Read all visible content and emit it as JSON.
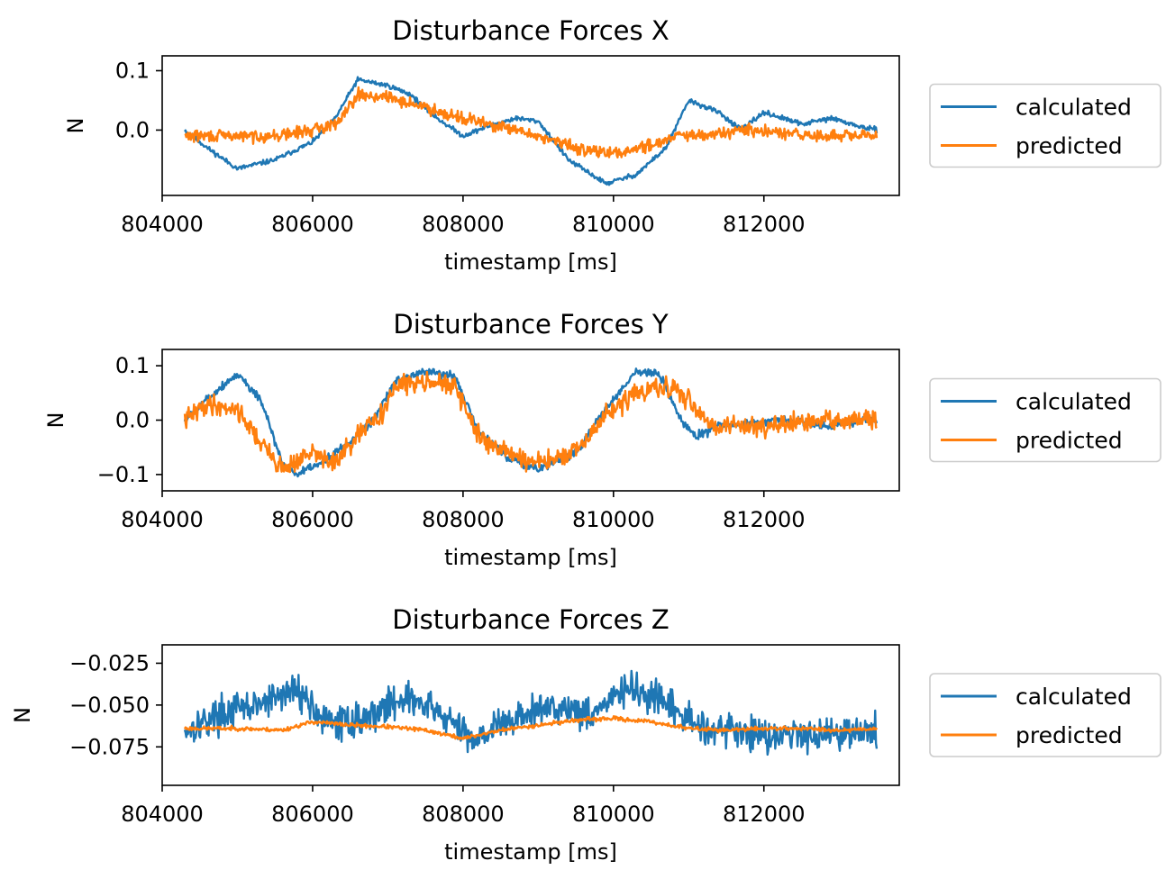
{
  "colors": {
    "calculated": "#1f77b4",
    "predicted": "#ff7f0e",
    "axes": "#000000",
    "legend_border": "#cccccc"
  },
  "chart_data": [
    {
      "type": "line",
      "title": "Disturbance Forces X",
      "xlabel": "timestamp [ms]",
      "ylabel": "N",
      "xlim": [
        804000,
        813800
      ],
      "ylim": [
        -0.11,
        0.125
      ],
      "x_ticks": [
        804000,
        806000,
        808000,
        810000,
        812000
      ],
      "x_tick_labels": [
        "804000",
        "806000",
        "808000",
        "810000",
        "812000"
      ],
      "y_ticks": [
        0.0,
        0.1
      ],
      "y_tick_labels": [
        "0.0",
        "0.1"
      ],
      "grid": false,
      "legend_position": "right",
      "series": [
        {
          "name": "calculated",
          "color_key": "calculated",
          "noise": 0.004,
          "seed": 11,
          "points": [
            [
              804300,
              0.0
            ],
            [
              804600,
              -0.03
            ],
            [
              805000,
              -0.065
            ],
            [
              805500,
              -0.05
            ],
            [
              806000,
              -0.02
            ],
            [
              806300,
              0.02
            ],
            [
              806600,
              0.085
            ],
            [
              807000,
              0.075
            ],
            [
              807300,
              0.06
            ],
            [
              807600,
              0.025
            ],
            [
              808000,
              -0.01
            ],
            [
              808300,
              0.005
            ],
            [
              808700,
              0.02
            ],
            [
              809000,
              0.015
            ],
            [
              809400,
              -0.05
            ],
            [
              809900,
              -0.09
            ],
            [
              810300,
              -0.075
            ],
            [
              810700,
              -0.03
            ],
            [
              811000,
              0.05
            ],
            [
              811400,
              0.03
            ],
            [
              811700,
              0.0
            ],
            [
              812000,
              0.03
            ],
            [
              812500,
              0.01
            ],
            [
              812900,
              0.02
            ],
            [
              813300,
              0.005
            ],
            [
              813500,
              0.0
            ]
          ]
        },
        {
          "name": "predicted",
          "color_key": "predicted",
          "noise": 0.01,
          "seed": 29,
          "points": [
            [
              804300,
              -0.01
            ],
            [
              805000,
              -0.01
            ],
            [
              805500,
              -0.01
            ],
            [
              806000,
              0.0
            ],
            [
              806300,
              0.01
            ],
            [
              806600,
              0.06
            ],
            [
              807000,
              0.055
            ],
            [
              807300,
              0.045
            ],
            [
              807600,
              0.035
            ],
            [
              808000,
              0.02
            ],
            [
              808500,
              0.005
            ],
            [
              809000,
              -0.01
            ],
            [
              809500,
              -0.03
            ],
            [
              810000,
              -0.04
            ],
            [
              810500,
              -0.025
            ],
            [
              810800,
              -0.01
            ],
            [
              811200,
              -0.01
            ],
            [
              811700,
              0.0
            ],
            [
              812200,
              -0.005
            ],
            [
              812700,
              -0.01
            ],
            [
              813300,
              -0.01
            ],
            [
              813500,
              -0.01
            ]
          ]
        }
      ]
    },
    {
      "type": "line",
      "title": "Disturbance Forces Y",
      "xlabel": "timestamp [ms]",
      "ylabel": "N",
      "xlim": [
        804000,
        813800
      ],
      "ylim": [
        -0.13,
        0.13
      ],
      "x_ticks": [
        804000,
        806000,
        808000,
        810000,
        812000
      ],
      "x_tick_labels": [
        "804000",
        "806000",
        "808000",
        "810000",
        "812000"
      ],
      "y_ticks": [
        -0.1,
        0.0,
        0.1
      ],
      "y_tick_labels": [
        "−0.1",
        "0.0",
        "0.1"
      ],
      "grid": false,
      "legend_position": "right",
      "series": [
        {
          "name": "calculated",
          "color_key": "calculated",
          "noise": 0.008,
          "seed": 5,
          "points": [
            [
              804300,
              0.0
            ],
            [
              804600,
              0.04
            ],
            [
              805000,
              0.085
            ],
            [
              805300,
              0.04
            ],
            [
              805600,
              -0.08
            ],
            [
              805800,
              -0.1
            ],
            [
              806100,
              -0.08
            ],
            [
              806500,
              -0.04
            ],
            [
              806800,
              0.0
            ],
            [
              807100,
              0.07
            ],
            [
              807500,
              0.09
            ],
            [
              807900,
              0.08
            ],
            [
              808200,
              -0.02
            ],
            [
              808600,
              -0.07
            ],
            [
              809000,
              -0.09
            ],
            [
              809500,
              -0.06
            ],
            [
              809900,
              0.02
            ],
            [
              810300,
              0.09
            ],
            [
              810600,
              0.085
            ],
            [
              810900,
              0.0
            ],
            [
              811100,
              -0.03
            ],
            [
              811400,
              -0.01
            ],
            [
              811800,
              -0.005
            ],
            [
              812300,
              0.0
            ],
            [
              812800,
              -0.01
            ],
            [
              813300,
              0.0
            ],
            [
              813500,
              0.0
            ]
          ]
        },
        {
          "name": "predicted",
          "color_key": "predicted",
          "noise": 0.018,
          "seed": 41,
          "points": [
            [
              804300,
              0.0
            ],
            [
              804600,
              0.03
            ],
            [
              805000,
              0.02
            ],
            [
              805300,
              -0.04
            ],
            [
              805600,
              -0.09
            ],
            [
              806000,
              -0.06
            ],
            [
              806300,
              -0.08
            ],
            [
              806600,
              -0.03
            ],
            [
              806900,
              0.01
            ],
            [
              807100,
              0.06
            ],
            [
              807500,
              0.075
            ],
            [
              807900,
              0.06
            ],
            [
              808200,
              -0.03
            ],
            [
              808600,
              -0.06
            ],
            [
              809000,
              -0.08
            ],
            [
              809500,
              -0.06
            ],
            [
              809900,
              0.01
            ],
            [
              810300,
              0.05
            ],
            [
              810700,
              0.06
            ],
            [
              811000,
              0.04
            ],
            [
              811300,
              -0.01
            ],
            [
              811800,
              -0.01
            ],
            [
              812300,
              -0.01
            ],
            [
              812800,
              0.0
            ],
            [
              813300,
              0.0
            ],
            [
              813500,
              0.0
            ]
          ]
        }
      ]
    },
    {
      "type": "line",
      "title": "Disturbance Forces Z",
      "xlabel": "timestamp [ms]",
      "ylabel": "N",
      "xlim": [
        804000,
        813800
      ],
      "ylim": [
        -0.098,
        -0.014
      ],
      "x_ticks": [
        804000,
        806000,
        808000,
        810000,
        812000
      ],
      "x_tick_labels": [
        "804000",
        "806000",
        "808000",
        "810000",
        "812000"
      ],
      "y_ticks": [
        -0.075,
        -0.05,
        -0.025
      ],
      "y_tick_labels": [
        "−0.075",
        "−0.050",
        "−0.025"
      ],
      "grid": false,
      "legend_position": "right",
      "series": [
        {
          "name": "calculated",
          "color_key": "calculated",
          "noise": 0.01,
          "seed": 17,
          "points": [
            [
              804300,
              -0.065
            ],
            [
              804800,
              -0.055
            ],
            [
              805300,
              -0.05
            ],
            [
              805800,
              -0.04
            ],
            [
              806200,
              -0.062
            ],
            [
              806700,
              -0.058
            ],
            [
              807200,
              -0.045
            ],
            [
              807700,
              -0.055
            ],
            [
              808100,
              -0.07
            ],
            [
              808600,
              -0.06
            ],
            [
              809200,
              -0.05
            ],
            [
              809700,
              -0.055
            ],
            [
              810200,
              -0.04
            ],
            [
              810700,
              -0.05
            ],
            [
              811100,
              -0.062
            ],
            [
              811600,
              -0.065
            ],
            [
              812100,
              -0.068
            ],
            [
              812600,
              -0.067
            ],
            [
              813100,
              -0.066
            ],
            [
              813500,
              -0.066
            ]
          ]
        },
        {
          "name": "predicted",
          "color_key": "predicted",
          "noise": 0.0012,
          "seed": 23,
          "points": [
            [
              804300,
              -0.064
            ],
            [
              805000,
              -0.064
            ],
            [
              805600,
              -0.065
            ],
            [
              806000,
              -0.06
            ],
            [
              806500,
              -0.062
            ],
            [
              807000,
              -0.063
            ],
            [
              807500,
              -0.065
            ],
            [
              808000,
              -0.07
            ],
            [
              808500,
              -0.065
            ],
            [
              809000,
              -0.062
            ],
            [
              809500,
              -0.059
            ],
            [
              810000,
              -0.058
            ],
            [
              810500,
              -0.06
            ],
            [
              811000,
              -0.064
            ],
            [
              811500,
              -0.065
            ],
            [
              812000,
              -0.064
            ],
            [
              812500,
              -0.064
            ],
            [
              813000,
              -0.065
            ],
            [
              813500,
              -0.064
            ]
          ]
        }
      ]
    }
  ]
}
